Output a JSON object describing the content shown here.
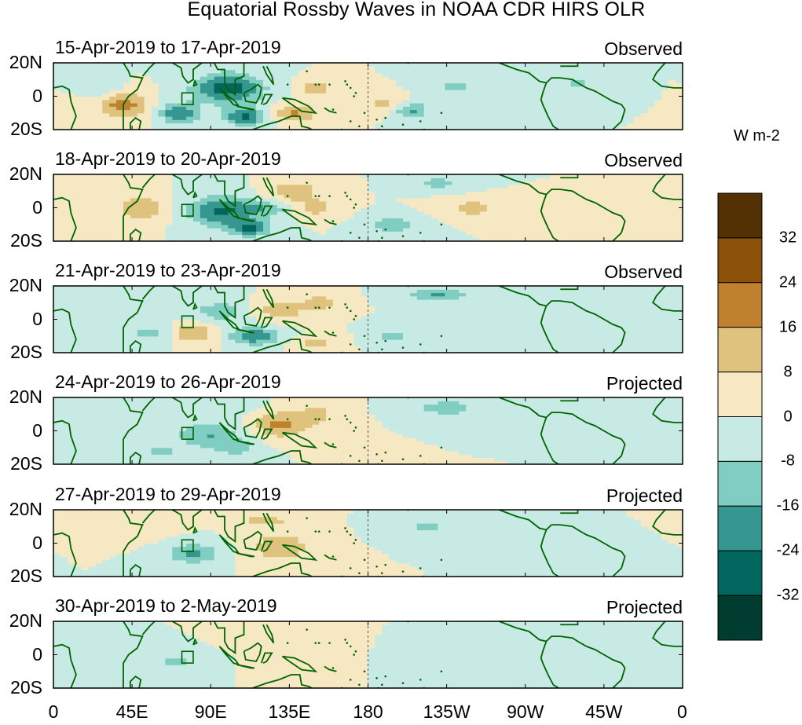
{
  "chart_data": {
    "type": "heatmap",
    "title": "Equatorial Rossby Waves in NOAA CDR HIRS OLR",
    "units": "W m-2",
    "panels": [
      {
        "dates": "15-Apr-2019 to 17-Apr-2019",
        "kind": "Observed"
      },
      {
        "dates": "18-Apr-2019 to 20-Apr-2019",
        "kind": "Observed"
      },
      {
        "dates": "21-Apr-2019 to 23-Apr-2019",
        "kind": "Observed"
      },
      {
        "dates": "24-Apr-2019 to 26-Apr-2019",
        "kind": "Projected"
      },
      {
        "dates": "27-Apr-2019 to 29-Apr-2019",
        "kind": "Projected"
      },
      {
        "dates": "30-Apr-2019 to 2-May-2019",
        "kind": "Projected"
      }
    ],
    "y_ticks": [
      "20N",
      "0",
      "20S"
    ],
    "ylim": [
      -20,
      20
    ],
    "x_ticks": [
      "0",
      "45E",
      "90E",
      "135E",
      "180",
      "135W",
      "90W",
      "45W",
      "0"
    ],
    "xlim": [
      0,
      360
    ],
    "colorbar": {
      "levels": [
        32,
        24,
        16,
        8,
        0,
        -8,
        -16,
        -24,
        -32
      ],
      "labels": [
        "32",
        "24",
        "16",
        "8",
        "0",
        "-8",
        "-16",
        "-24",
        "-32"
      ],
      "colors": [
        "#543005",
        "#8c510a",
        "#bf812d",
        "#dfc27d",
        "#f6e8c3",
        "#c7eae5",
        "#80cdc1",
        "#35978f",
        "#01665e",
        "#003c30"
      ]
    },
    "dateline_lon": 180,
    "coast_color": "#006400"
  }
}
